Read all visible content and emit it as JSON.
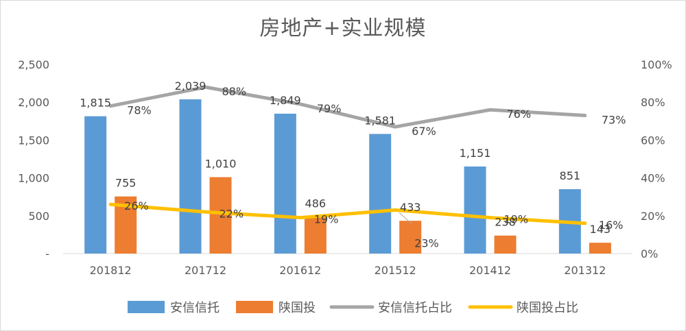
{
  "chart_data": {
    "type": "bar",
    "title": "房地产+实业规模",
    "categories": [
      "201812",
      "201712",
      "201612",
      "201512",
      "201412",
      "201312"
    ],
    "series": [
      {
        "name": "安信信托",
        "kind": "bar",
        "axis": "left",
        "color": "#5b9bd5",
        "values": [
          1815,
          2039,
          1849,
          1581,
          1151,
          851
        ],
        "labels": [
          "1,815",
          "2,039",
          "1,849",
          "1,581",
          "1,151",
          "851"
        ]
      },
      {
        "name": "陕国投",
        "kind": "bar",
        "axis": "left",
        "color": "#ed7d31",
        "values": [
          755,
          1010,
          486,
          433,
          238,
          143
        ],
        "labels": [
          "755",
          "1,010",
          "486",
          "433",
          "238",
          "143"
        ]
      },
      {
        "name": "安信信托占比",
        "kind": "line",
        "axis": "right",
        "color": "#a5a5a5",
        "values": [
          78,
          88,
          79,
          67,
          76,
          73
        ],
        "labels": [
          "78%",
          "88%",
          "79%",
          "67%",
          "76%",
          "73%"
        ]
      },
      {
        "name": "陕国投占比",
        "kind": "line",
        "axis": "right",
        "color": "#ffc000",
        "values": [
          26,
          22,
          19,
          23,
          19,
          16
        ],
        "labels": [
          "26%",
          "22%",
          "19%",
          "23%",
          "19%",
          "16%"
        ]
      }
    ],
    "y_left": {
      "min": 0,
      "max": 2500,
      "ticks": [
        "-",
        "500",
        "1,000",
        "1,500",
        "2,000",
        "2,500"
      ]
    },
    "y_right": {
      "min": 0,
      "max": 100,
      "ticks": [
        "0%",
        "20%",
        "40%",
        "60%",
        "80%",
        "100%"
      ]
    },
    "grid": false,
    "legend": "bottom"
  }
}
